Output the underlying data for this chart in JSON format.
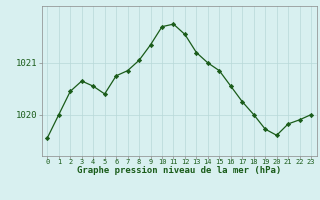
{
  "x": [
    0,
    1,
    2,
    3,
    4,
    5,
    6,
    7,
    8,
    9,
    10,
    11,
    12,
    13,
    14,
    15,
    16,
    17,
    18,
    19,
    20,
    21,
    22,
    23
  ],
  "y": [
    1019.55,
    1020.0,
    1020.45,
    1020.65,
    1020.55,
    1020.4,
    1020.75,
    1020.85,
    1021.05,
    1021.35,
    1021.7,
    1021.75,
    1021.55,
    1021.2,
    1021.0,
    1020.85,
    1020.55,
    1020.25,
    1020.0,
    1019.72,
    1019.6,
    1019.82,
    1019.9,
    1020.0
  ],
  "line_color": "#1a5c1a",
  "marker": "D",
  "marker_size": 2.2,
  "bg_color": "#d8f0f0",
  "grid_color": "#b8d8d8",
  "xlabel": "Graphe pression niveau de la mer (hPa)",
  "xlabel_color": "#1a5c1a",
  "yticks": [
    1020,
    1021
  ],
  "ylim": [
    1019.2,
    1022.1
  ],
  "xlim": [
    -0.5,
    23.5
  ],
  "tick_color": "#1a5c1a",
  "axis_color": "#888888",
  "spine_color": "#888888",
  "xtick_fontsize": 5.0,
  "ytick_fontsize": 6.5,
  "xlabel_fontsize": 6.5
}
